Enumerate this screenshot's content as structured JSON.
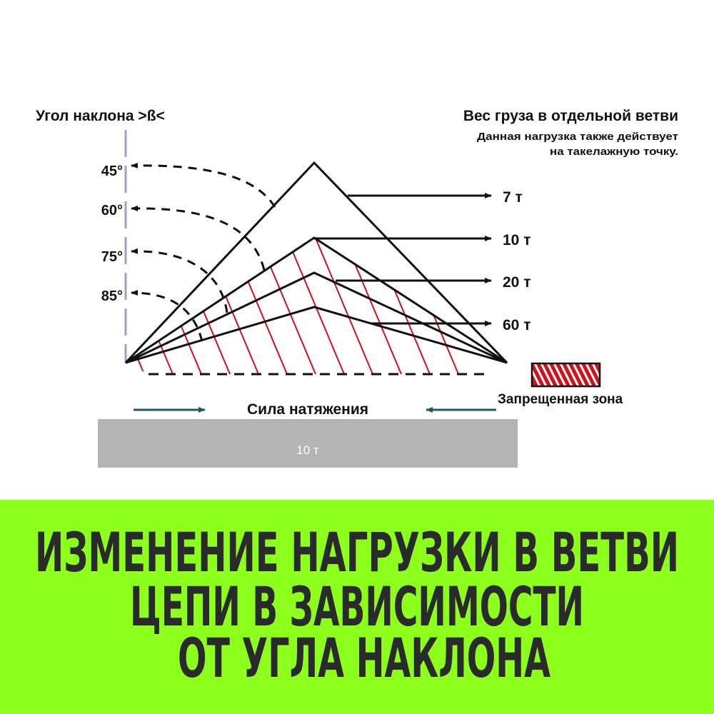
{
  "left_heading": "Угол наклона >ß<",
  "right_heading": "Вес груза в отдельной ветви",
  "right_note_line1": "Данная нагрузка также действует",
  "right_note_line2": "на такелажную точку.",
  "angles": [
    "45°",
    "60°",
    "75°",
    "85°"
  ],
  "loads": [
    "7 т",
    "10 т",
    "20 т",
    "60 т"
  ],
  "legend_label": "Запрещенная зона",
  "tension_label": "Сила натяжения",
  "bar_label": "10 т",
  "title_lines": [
    "ИЗМЕНЕНИЕ НАГРУЗКИ В ВЕТВИ",
    "ЦЕПИ В ЗАВИСИМОСТИ",
    "ОТ УГЛА НАКЛОНА"
  ],
  "colors": {
    "forbidden_zone": "#d0101a",
    "tension_arrow": "#1e5a64",
    "band": "#8cff1a",
    "bar": "#b4b4b4",
    "axis": "#a89cc4"
  }
}
